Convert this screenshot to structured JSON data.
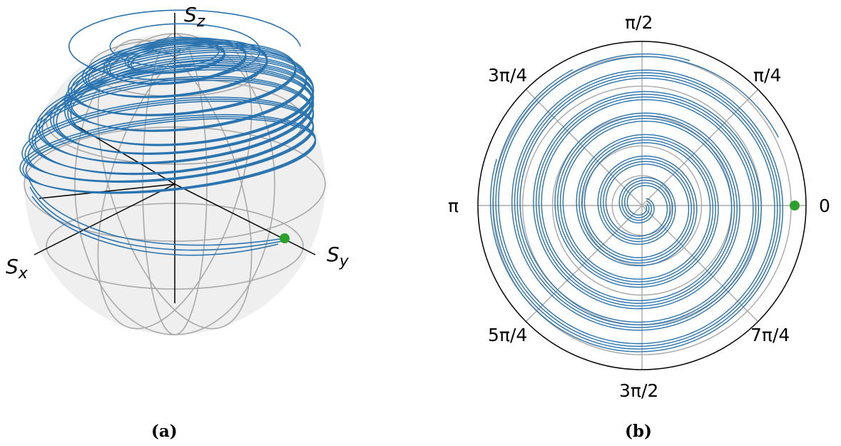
{
  "panel_a": {
    "caption": "(a)",
    "axis_labels": {
      "sz": "S",
      "sz_sub": "z",
      "sx": "S",
      "sx_sub": "x",
      "sy": "S",
      "sy_sub": "y"
    }
  },
  "panel_b": {
    "caption": "(b)",
    "angle_labels": [
      "0",
      "π/4",
      "π/2",
      "3π/4",
      "π",
      "5π/4",
      "3π/2",
      "7π/4"
    ]
  },
  "colors": {
    "trajectory": "#2a74b0",
    "marker": "#2ca02c",
    "grid": "#a9a9a9",
    "sphere_fill": "#ececec",
    "axis": "#000000"
  }
}
